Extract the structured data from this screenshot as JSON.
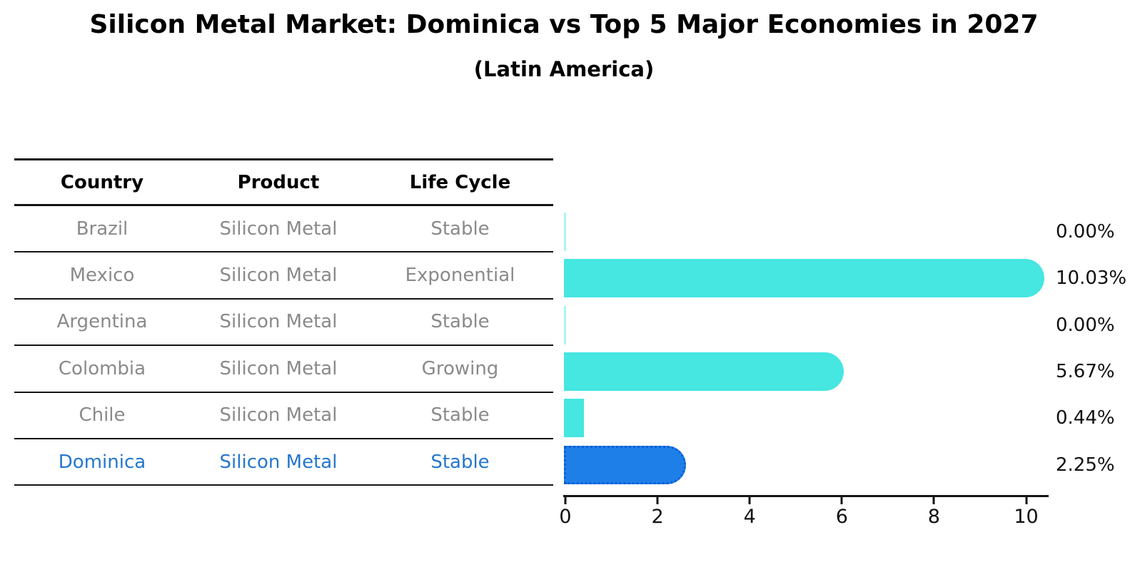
{
  "title": "Silicon Metal Market: Dominica vs Top 5 Major Economies in 2027",
  "subtitle": "(Latin America)",
  "table": {
    "headers": [
      "Country",
      "Product",
      "Life Cycle"
    ],
    "rows": [
      {
        "country": "Brazil",
        "product": "Silicon Metal",
        "life_cycle": "Stable",
        "highlight": false
      },
      {
        "country": "Mexico",
        "product": "Silicon Metal",
        "life_cycle": "Exponential",
        "highlight": false
      },
      {
        "country": "Argentina",
        "product": "Silicon Metal",
        "life_cycle": "Stable",
        "highlight": false
      },
      {
        "country": "Colombia",
        "product": "Silicon Metal",
        "life_cycle": "Growing",
        "highlight": false
      },
      {
        "country": "Chile",
        "product": "Silicon Metal",
        "life_cycle": "Stable",
        "highlight": false
      },
      {
        "country": "Dominica",
        "product": "Silicon Metal",
        "life_cycle": "Stable",
        "highlight": true
      }
    ]
  },
  "chart_data": {
    "type": "bar",
    "orientation": "horizontal",
    "title": "Silicon Metal Market: Dominica vs Top 5 Major Economies in 2027",
    "subtitle": "(Latin America)",
    "categories": [
      "Brazil",
      "Mexico",
      "Argentina",
      "Colombia",
      "Chile",
      "Dominica"
    ],
    "values": [
      0.0,
      10.03,
      0.0,
      5.67,
      0.44,
      2.25
    ],
    "value_labels": [
      "0.00%",
      "10.03%",
      "0.00%",
      "5.67%",
      "0.44%",
      "2.25%"
    ],
    "x_ticks": [
      "0",
      "2",
      "4",
      "6",
      "8",
      "10"
    ],
    "xlim": [
      0,
      10.5
    ],
    "grid": false,
    "legend": false,
    "highlight_index": 5,
    "colors": {
      "bar_default": "#46e6e1",
      "bar_highlight": "#1e7fe8",
      "highlight_border": "#0d5fd6",
      "highlight_text": "#2577cc",
      "cell_text": "#8a8a8a",
      "axis_text": "#111111"
    }
  }
}
